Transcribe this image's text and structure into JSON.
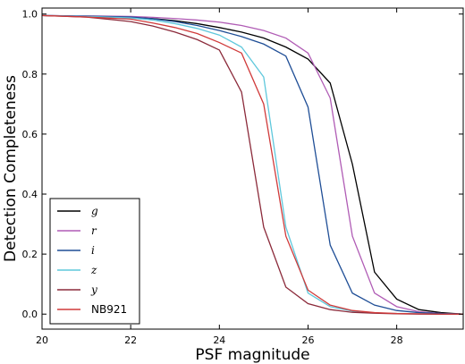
{
  "chart_data": {
    "type": "line",
    "title": "",
    "xlabel": "PSF magnitude",
    "ylabel": "Detection Completeness",
    "xlim": [
      20,
      29.5
    ],
    "ylim": [
      -0.05,
      1.02
    ],
    "xticks": [
      "20",
      "22",
      "24",
      "26",
      "28"
    ],
    "yticks": [
      "0.0",
      "0.2",
      "0.4",
      "0.6",
      "0.8",
      "1.0"
    ],
    "grid": false,
    "legend_position": "lower-left",
    "series": [
      {
        "name": "g",
        "color": "#000000",
        "x": [
          20,
          21,
          22,
          22.5,
          23,
          23.5,
          24,
          24.5,
          25,
          25.5,
          26,
          26.5,
          27,
          27.5,
          28,
          28.5,
          29,
          29.5
        ],
        "y": [
          0.995,
          0.993,
          0.99,
          0.985,
          0.978,
          0.968,
          0.955,
          0.94,
          0.92,
          0.89,
          0.85,
          0.77,
          0.5,
          0.14,
          0.05,
          0.015,
          0.005,
          0.0
        ]
      },
      {
        "name": "r",
        "color": "#b05cb5",
        "x": [
          20,
          21,
          22,
          22.5,
          23,
          23.5,
          24,
          24.5,
          25,
          25.5,
          26,
          26.5,
          27,
          27.5,
          28,
          28.5,
          29,
          29.5
        ],
        "y": [
          0.995,
          0.994,
          0.992,
          0.989,
          0.985,
          0.98,
          0.973,
          0.962,
          0.945,
          0.92,
          0.87,
          0.72,
          0.26,
          0.07,
          0.025,
          0.008,
          0.002,
          0.0
        ]
      },
      {
        "name": "i",
        "color": "#1f4e96",
        "x": [
          20,
          21,
          22,
          22.5,
          23,
          23.5,
          24,
          24.5,
          25,
          25.5,
          26,
          26.5,
          27,
          27.5,
          28,
          28.5,
          29,
          29.5
        ],
        "y": [
          0.995,
          0.993,
          0.99,
          0.984,
          0.975,
          0.962,
          0.945,
          0.925,
          0.9,
          0.86,
          0.69,
          0.23,
          0.07,
          0.03,
          0.012,
          0.005,
          0.002,
          0.0
        ]
      },
      {
        "name": "z",
        "color": "#5fc8dc",
        "x": [
          20,
          21,
          22,
          22.5,
          23,
          23.5,
          24,
          24.5,
          25,
          25.5,
          26,
          26.5,
          27,
          27.5,
          28,
          28.5,
          29,
          29.5
        ],
        "y": [
          0.995,
          0.992,
          0.987,
          0.98,
          0.968,
          0.952,
          0.93,
          0.89,
          0.79,
          0.29,
          0.07,
          0.025,
          0.01,
          0.004,
          0.002,
          0.001,
          0.0,
          0.0
        ]
      },
      {
        "name": "y",
        "color": "#8b2a3a",
        "x": [
          20,
          21,
          22,
          22.5,
          23,
          23.5,
          24,
          24.5,
          25,
          25.5,
          26,
          26.5,
          27,
          27.5,
          28,
          28.5,
          29,
          29.5
        ],
        "y": [
          0.995,
          0.99,
          0.975,
          0.96,
          0.94,
          0.915,
          0.88,
          0.74,
          0.29,
          0.09,
          0.035,
          0.015,
          0.006,
          0.003,
          0.001,
          0.0,
          0.0,
          0.0
        ]
      },
      {
        "name": "NB921",
        "color": "#d03a3a",
        "x": [
          20,
          21,
          22,
          22.5,
          23,
          23.5,
          24,
          24.5,
          25,
          25.5,
          26,
          26.5,
          27,
          27.5,
          28,
          28.5,
          29,
          29.5
        ],
        "y": [
          0.995,
          0.99,
          0.983,
          0.97,
          0.955,
          0.935,
          0.905,
          0.87,
          0.7,
          0.26,
          0.08,
          0.03,
          0.012,
          0.005,
          0.002,
          0.001,
          0.0,
          0.0
        ]
      }
    ]
  }
}
